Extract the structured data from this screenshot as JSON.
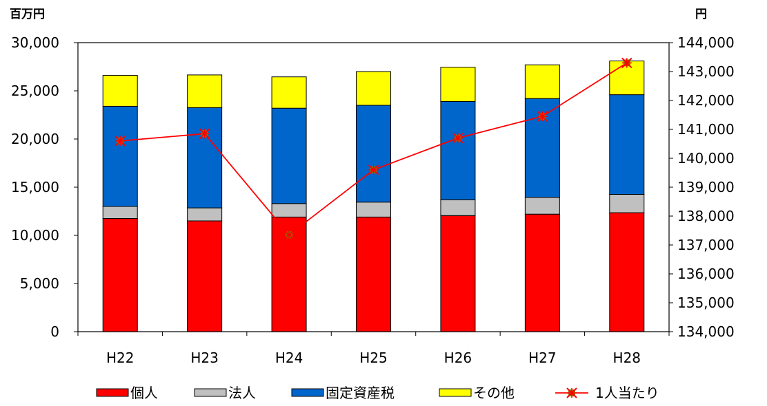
{
  "chart_data": {
    "type": "bar",
    "stacked": true,
    "categories": [
      "H22",
      "H23",
      "H24",
      "H25",
      "H26",
      "H27",
      "H28"
    ],
    "series": [
      {
        "name": "個人",
        "type": "bar",
        "axis": "left",
        "color": "#FF0000",
        "values": [
          11750,
          11500,
          11900,
          11900,
          12050,
          12200,
          12350
        ]
      },
      {
        "name": "法人",
        "type": "bar",
        "axis": "left",
        "color": "#C0C0C0",
        "values": [
          1250,
          1350,
          1400,
          1550,
          1650,
          1750,
          1900
        ]
      },
      {
        "name": "固定資産税",
        "type": "bar",
        "axis": "left",
        "color": "#0066CC",
        "values": [
          10400,
          10400,
          9900,
          10050,
          10200,
          10250,
          10350
        ]
      },
      {
        "name": "その他",
        "type": "bar",
        "axis": "left",
        "color": "#FFFF00",
        "values": [
          3200,
          3400,
          3250,
          3500,
          3550,
          3500,
          3500
        ]
      },
      {
        "name": "1人当たり",
        "type": "line",
        "axis": "right",
        "color": "#FF0000",
        "marker_color": "#808000",
        "values": [
          140600,
          140850,
          137350,
          139600,
          140700,
          141450,
          143300
        ]
      }
    ],
    "left_axis": {
      "unit": "百万円",
      "min": 0,
      "max": 30000,
      "step": 5000,
      "ticks": [
        "0",
        "5,000",
        "10,000",
        "15,000",
        "20,000",
        "25,000",
        "30,000"
      ]
    },
    "right_axis": {
      "unit": "円",
      "min": 134000,
      "max": 144000,
      "step": 1000,
      "ticks": [
        "134,000",
        "135,000",
        "136,000",
        "137,000",
        "138,000",
        "139,000",
        "140,000",
        "141,000",
        "142,000",
        "143,000",
        "144,000"
      ]
    },
    "legend_position": "bottom",
    "grid": false
  }
}
